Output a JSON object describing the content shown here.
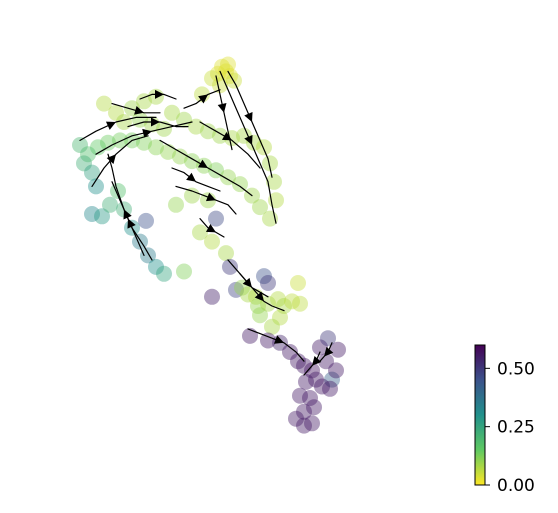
{
  "chart_data": {
    "type": "scatter",
    "description_free": true,
    "title": "",
    "xlabel": "",
    "ylabel": "",
    "axes_visible": false,
    "grid": false,
    "colormap": "viridis_r",
    "colorbar": {
      "range": [
        0.0,
        0.6
      ],
      "ticks": [
        0.0,
        0.25,
        0.5
      ],
      "tick_labels": [
        "0.00",
        "0.25",
        "0.50"
      ],
      "placement": "bottom-right"
    },
    "xlim": [
      0,
      100
    ],
    "ylim": [
      0,
      100
    ],
    "points": [
      {
        "x": 45.5,
        "y": 92.0,
        "v": 0.03
      },
      {
        "x": 46.5,
        "y": 91.0,
        "v": 0.03
      },
      {
        "x": 44.5,
        "y": 90.5,
        "v": 0.03
      },
      {
        "x": 47.5,
        "y": 90.0,
        "v": 0.03
      },
      {
        "x": 43.0,
        "y": 89.5,
        "v": 0.05
      },
      {
        "x": 48.5,
        "y": 89.0,
        "v": 0.05
      },
      {
        "x": 47.0,
        "y": 92.5,
        "v": 0.03
      },
      {
        "x": 45.0,
        "y": 88.0,
        "v": 0.05
      },
      {
        "x": 40.5,
        "y": 86.0,
        "v": 0.06
      },
      {
        "x": 26.0,
        "y": 84.5,
        "v": 0.08
      },
      {
        "x": 29.0,
        "y": 85.5,
        "v": 0.08
      },
      {
        "x": 23.0,
        "y": 83.0,
        "v": 0.09
      },
      {
        "x": 19.0,
        "y": 82.0,
        "v": 0.07
      },
      {
        "x": 16.0,
        "y": 84.0,
        "v": 0.07
      },
      {
        "x": 21.0,
        "y": 80.0,
        "v": 0.08
      },
      {
        "x": 25.0,
        "y": 80.5,
        "v": 0.1
      },
      {
        "x": 28.0,
        "y": 79.5,
        "v": 0.09
      },
      {
        "x": 31.0,
        "y": 78.5,
        "v": 0.09
      },
      {
        "x": 33.0,
        "y": 82.0,
        "v": 0.08
      },
      {
        "x": 36.0,
        "y": 80.5,
        "v": 0.09
      },
      {
        "x": 39.0,
        "y": 79.0,
        "v": 0.08
      },
      {
        "x": 42.0,
        "y": 78.0,
        "v": 0.09
      },
      {
        "x": 45.0,
        "y": 77.0,
        "v": 0.09
      },
      {
        "x": 48.0,
        "y": 76.5,
        "v": 0.08
      },
      {
        "x": 51.0,
        "y": 77.0,
        "v": 0.08
      },
      {
        "x": 53.5,
        "y": 75.5,
        "v": 0.08
      },
      {
        "x": 56.0,
        "y": 74.5,
        "v": 0.07
      },
      {
        "x": 57.5,
        "y": 71.0,
        "v": 0.08
      },
      {
        "x": 58.5,
        "y": 67.0,
        "v": 0.08
      },
      {
        "x": 59.0,
        "y": 63.0,
        "v": 0.07
      },
      {
        "x": 57.5,
        "y": 59.0,
        "v": 0.08
      },
      {
        "x": 55.0,
        "y": 61.5,
        "v": 0.09
      },
      {
        "x": 53.0,
        "y": 64.0,
        "v": 0.09
      },
      {
        "x": 50.0,
        "y": 66.5,
        "v": 0.1
      },
      {
        "x": 47.0,
        "y": 68.0,
        "v": 0.1
      },
      {
        "x": 44.0,
        "y": 69.5,
        "v": 0.12
      },
      {
        "x": 41.0,
        "y": 70.5,
        "v": 0.11
      },
      {
        "x": 38.0,
        "y": 71.5,
        "v": 0.11
      },
      {
        "x": 35.0,
        "y": 72.5,
        "v": 0.1
      },
      {
        "x": 32.0,
        "y": 73.5,
        "v": 0.1
      },
      {
        "x": 29.0,
        "y": 74.5,
        "v": 0.11
      },
      {
        "x": 26.0,
        "y": 75.5,
        "v": 0.12
      },
      {
        "x": 23.0,
        "y": 76.0,
        "v": 0.13
      },
      {
        "x": 20.0,
        "y": 76.0,
        "v": 0.13
      },
      {
        "x": 17.0,
        "y": 75.5,
        "v": 0.14
      },
      {
        "x": 14.5,
        "y": 74.5,
        "v": 0.15
      },
      {
        "x": 12.0,
        "y": 73.0,
        "v": 0.18
      },
      {
        "x": 10.0,
        "y": 75.0,
        "v": 0.2
      },
      {
        "x": 11.0,
        "y": 71.0,
        "v": 0.22
      },
      {
        "x": 13.0,
        "y": 69.0,
        "v": 0.26
      },
      {
        "x": 14.0,
        "y": 66.0,
        "v": 0.3
      },
      {
        "x": 13.0,
        "y": 60.0,
        "v": 0.32
      },
      {
        "x": 15.5,
        "y": 59.5,
        "v": 0.28
      },
      {
        "x": 17.5,
        "y": 62.0,
        "v": 0.22
      },
      {
        "x": 19.5,
        "y": 65.0,
        "v": 0.18
      },
      {
        "x": 21.0,
        "y": 61.0,
        "v": 0.22
      },
      {
        "x": 23.0,
        "y": 57.0,
        "v": 0.3
      },
      {
        "x": 25.0,
        "y": 54.0,
        "v": 0.35
      },
      {
        "x": 27.0,
        "y": 51.0,
        "v": 0.35
      },
      {
        "x": 29.0,
        "y": 48.5,
        "v": 0.3
      },
      {
        "x": 31.0,
        "y": 47.0,
        "v": 0.25
      },
      {
        "x": 26.5,
        "y": 58.5,
        "v": 0.45
      },
      {
        "x": 36.0,
        "y": 47.5,
        "v": 0.12
      },
      {
        "x": 34.0,
        "y": 62.0,
        "v": 0.1
      },
      {
        "x": 38.0,
        "y": 64.0,
        "v": 0.09
      },
      {
        "x": 42.0,
        "y": 63.0,
        "v": 0.09
      },
      {
        "x": 40.0,
        "y": 56.0,
        "v": 0.08
      },
      {
        "x": 43.0,
        "y": 54.0,
        "v": 0.07
      },
      {
        "x": 44.0,
        "y": 59.0,
        "v": 0.47
      },
      {
        "x": 46.5,
        "y": 51.5,
        "v": 0.08
      },
      {
        "x": 47.5,
        "y": 48.5,
        "v": 0.5
      },
      {
        "x": 43.0,
        "y": 42.0,
        "v": 0.55
      },
      {
        "x": 49.0,
        "y": 43.5,
        "v": 0.48
      },
      {
        "x": 50.5,
        "y": 44.0,
        "v": 0.1
      },
      {
        "x": 52.0,
        "y": 42.5,
        "v": 0.08
      },
      {
        "x": 54.0,
        "y": 42.0,
        "v": 0.07
      },
      {
        "x": 56.0,
        "y": 46.5,
        "v": 0.45
      },
      {
        "x": 57.0,
        "y": 45.0,
        "v": 0.5
      },
      {
        "x": 54.5,
        "y": 40.0,
        "v": 0.1
      },
      {
        "x": 57.0,
        "y": 40.5,
        "v": 0.08
      },
      {
        "x": 59.5,
        "y": 41.5,
        "v": 0.07
      },
      {
        "x": 61.0,
        "y": 40.0,
        "v": 0.08
      },
      {
        "x": 63.0,
        "y": 41.0,
        "v": 0.06
      },
      {
        "x": 65.0,
        "y": 40.5,
        "v": 0.06
      },
      {
        "x": 64.5,
        "y": 45.0,
        "v": 0.05
      },
      {
        "x": 60.0,
        "y": 37.5,
        "v": 0.07
      },
      {
        "x": 58.0,
        "y": 35.5,
        "v": 0.08
      },
      {
        "x": 55.0,
        "y": 38.0,
        "v": 0.1
      },
      {
        "x": 52.5,
        "y": 33.5,
        "v": 0.56
      },
      {
        "x": 57.0,
        "y": 32.5,
        "v": 0.56
      },
      {
        "x": 60.0,
        "y": 32.0,
        "v": 0.54
      },
      {
        "x": 62.5,
        "y": 30.0,
        "v": 0.56
      },
      {
        "x": 64.5,
        "y": 28.0,
        "v": 0.56
      },
      {
        "x": 66.0,
        "y": 27.0,
        "v": 0.56
      },
      {
        "x": 68.0,
        "y": 26.0,
        "v": 0.57
      },
      {
        "x": 69.0,
        "y": 24.0,
        "v": 0.56
      },
      {
        "x": 66.5,
        "y": 23.5,
        "v": 0.56
      },
      {
        "x": 65.0,
        "y": 20.5,
        "v": 0.56
      },
      {
        "x": 67.5,
        "y": 20.0,
        "v": 0.56
      },
      {
        "x": 66.0,
        "y": 17.0,
        "v": 0.56
      },
      {
        "x": 68.5,
        "y": 18.0,
        "v": 0.56
      },
      {
        "x": 64.0,
        "y": 15.5,
        "v": 0.56
      },
      {
        "x": 66.0,
        "y": 14.0,
        "v": 0.56
      },
      {
        "x": 68.0,
        "y": 14.5,
        "v": 0.56
      },
      {
        "x": 70.0,
        "y": 31.0,
        "v": 0.56
      },
      {
        "x": 71.5,
        "y": 28.0,
        "v": 0.56
      },
      {
        "x": 73.0,
        "y": 24.0,
        "v": 0.42
      },
      {
        "x": 74.0,
        "y": 26.0,
        "v": 0.56
      },
      {
        "x": 72.5,
        "y": 22.0,
        "v": 0.56
      },
      {
        "x": 70.5,
        "y": 22.5,
        "v": 0.56
      },
      {
        "x": 74.5,
        "y": 30.5,
        "v": 0.56
      },
      {
        "x": 72.0,
        "y": 33.0,
        "v": 0.5
      }
    ],
    "streamlines": [
      [
        [
          10,
          76
        ],
        [
          14,
          78
        ],
        [
          19,
          80
        ],
        [
          24,
          81
        ],
        [
          29,
          81
        ]
      ],
      [
        [
          14,
          73
        ],
        [
          18,
          75
        ],
        [
          23,
          77
        ],
        [
          28,
          78
        ],
        [
          33,
          79
        ],
        [
          38,
          80
        ]
      ],
      [
        [
          13,
          66
        ],
        [
          16,
          70
        ],
        [
          19,
          73
        ],
        [
          23,
          76
        ],
        [
          27,
          77
        ]
      ],
      [
        [
          28,
          50
        ],
        [
          26,
          53
        ],
        [
          23,
          57
        ],
        [
          21,
          61
        ],
        [
          19,
          66
        ],
        [
          18,
          70
        ],
        [
          17,
          73
        ]
      ],
      [
        [
          26,
          51
        ],
        [
          24,
          55
        ],
        [
          22,
          59
        ],
        [
          20,
          63
        ],
        [
          18,
          67
        ]
      ],
      [
        [
          25,
          85
        ],
        [
          28,
          86
        ],
        [
          31,
          86
        ],
        [
          34,
          85
        ]
      ],
      [
        [
          36,
          83
        ],
        [
          39,
          84
        ],
        [
          42,
          86
        ],
        [
          45,
          87
        ]
      ],
      [
        [
          45,
          91
        ],
        [
          47,
          87
        ],
        [
          49,
          83
        ],
        [
          51,
          79
        ],
        [
          53,
          75
        ],
        [
          55,
          71
        ],
        [
          57,
          67
        ],
        [
          58,
          62
        ],
        [
          59,
          58
        ]
      ],
      [
        [
          47,
          91
        ],
        [
          49,
          88
        ],
        [
          51,
          84
        ],
        [
          53,
          80
        ],
        [
          55,
          76
        ],
        [
          57,
          72
        ],
        [
          58,
          68
        ]
      ],
      [
        [
          44,
          90
        ],
        [
          45,
          86
        ],
        [
          46,
          82
        ],
        [
          47,
          78
        ],
        [
          48,
          74
        ]
      ],
      [
        [
          40,
          80
        ],
        [
          44,
          78
        ],
        [
          48,
          76
        ],
        [
          52,
          73
        ],
        [
          55,
          70
        ]
      ],
      [
        [
          30,
          76
        ],
        [
          34,
          74
        ],
        [
          38,
          72
        ],
        [
          42,
          70
        ],
        [
          46,
          68
        ],
        [
          50,
          66
        ],
        [
          53,
          64
        ]
      ],
      [
        [
          34,
          66
        ],
        [
          38,
          65
        ],
        [
          41,
          64
        ],
        [
          44,
          63
        ],
        [
          47,
          62
        ],
        [
          49,
          60
        ]
      ],
      [
        [
          40,
          59
        ],
        [
          42,
          57
        ],
        [
          44,
          56
        ],
        [
          46,
          55
        ]
      ],
      [
        [
          47,
          50
        ],
        [
          49,
          48
        ],
        [
          51,
          46
        ],
        [
          53,
          44
        ],
        [
          55,
          43
        ],
        [
          57,
          42
        ]
      ],
      [
        [
          50,
          47
        ],
        [
          52,
          45
        ],
        [
          54,
          43
        ],
        [
          56,
          41
        ],
        [
          58,
          40
        ],
        [
          61,
          39
        ]
      ],
      [
        [
          52,
          35
        ],
        [
          55,
          34
        ],
        [
          58,
          33
        ],
        [
          61,
          32
        ],
        [
          64,
          30
        ],
        [
          66,
          28
        ]
      ],
      [
        [
          70,
          30
        ],
        [
          69,
          28
        ],
        [
          68,
          27
        ],
        [
          67,
          26
        ],
        [
          66,
          25
        ]
      ],
      [
        [
          73,
          32
        ],
        [
          72,
          30
        ],
        [
          71,
          29
        ],
        [
          70,
          28
        ]
      ],
      [
        [
          22,
          79
        ],
        [
          26,
          80
        ],
        [
          30,
          80
        ],
        [
          34,
          79
        ],
        [
          37,
          79
        ]
      ],
      [
        [
          18,
          84
        ],
        [
          22,
          83
        ],
        [
          26,
          82
        ],
        [
          30,
          82
        ]
      ],
      [
        [
          33,
          70
        ],
        [
          36,
          69
        ],
        [
          39,
          67
        ],
        [
          42,
          66
        ],
        [
          45,
          65
        ]
      ]
    ]
  }
}
